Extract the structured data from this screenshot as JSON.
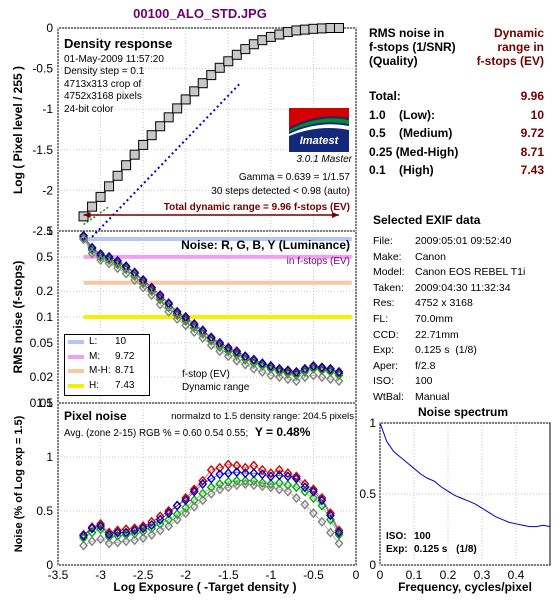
{
  "file_title": "00100_ALO_STD.JPG",
  "colors": {
    "maroon": "#700000",
    "blue_curve": "#0000d0",
    "red_trace": "#d00000",
    "green_trace": "#00b000",
    "blue_trace": "#0000c0",
    "gray_trace": "#808080",
    "band_low": "#b8c4f4",
    "band_medium": "#f0a0f0",
    "band_medhigh": "#f8c8a0",
    "band_high": "#f4f000"
  },
  "density_panel": {
    "title": "Density response",
    "info_lines": [
      "01-May-2009 11:57:20",
      "Density step = 0.1",
      "4713x313 crop of",
      "4752x3168 pixels",
      "24-bit color"
    ],
    "logo_text": "Imatest",
    "version": "3.0.1  Master",
    "gamma_text": "Gamma = 0.639 = 1/1.57",
    "steps_text": "30 steps detected < 0.98 (auto)",
    "dynamic_range_text": "Total dynamic range = 9.96 f-stops (EV)"
  },
  "noise_panel": {
    "title": "Noise: R, G, B, Y (Luminance)",
    "subtitle": "in f-stops (EV)",
    "legend": [
      {
        "key": "L:",
        "value": "10"
      },
      {
        "key": "M:",
        "value": "9.72"
      },
      {
        "key": "M-H:",
        "value": "8.71"
      },
      {
        "key": "H:",
        "value": "7.43"
      }
    ],
    "note_line1": "f-stop (EV)",
    "note_line2": "Dynamic range"
  },
  "pixel_panel": {
    "title": "Pixel noise",
    "norm_text": "normalzd to 1.5 density range: 204.5 pixels",
    "avg_text": "Avg. (zone 2-15) RGB % = 0.60  0.54  0.55;",
    "y_text": "Y = 0.48%"
  },
  "axes": {
    "density_ylabel": "Log ( Pixel level / 255 )",
    "noise_ylabel": "RMS noise (f-stops)",
    "pixel_ylabel": "Noise (% of Log exp = 1.5)",
    "bottom_xlabel": "Log Exposure  ( -Target density )",
    "density_yticks": [
      "0",
      "-0.5",
      "-1",
      "-1.5",
      "-2",
      "-2.5"
    ],
    "noise_yticks": [
      "1",
      "0.5",
      "0.2",
      "0.1",
      "0.05",
      "0.02",
      "0.01"
    ],
    "pixel_yticks": [
      "1.5",
      "1",
      "0.5",
      "0"
    ],
    "xticks": [
      "-3.5",
      "-3",
      "-2.5",
      "-2",
      "-1.5",
      "-1",
      "-0.5",
      "0"
    ]
  },
  "dynamic_range_table": {
    "header_left": [
      "RMS noise in",
      "f-stops (1/SNR)",
      "(Quality)"
    ],
    "header_right": [
      "Dynamic",
      "range in",
      "f-stops (EV)"
    ],
    "rows": [
      {
        "label": "Total:",
        "value": "9.96"
      },
      {
        "label": "1.0    (Low):",
        "value": "10"
      },
      {
        "label": "0.5    (Medium)",
        "value": "9.72"
      },
      {
        "label": "0.25 (Med-High)",
        "value": "8.71"
      },
      {
        "label": "0.1    (High)",
        "value": "7.43"
      }
    ]
  },
  "exif": {
    "title": "Selected EXIF data",
    "rows": [
      {
        "key": "File:",
        "value": "2009:05:01 09:52:40"
      },
      {
        "key": "Make:",
        "value": "Canon"
      },
      {
        "key": "Model:",
        "value": "Canon EOS REBEL T1i"
      },
      {
        "key": "Taken:",
        "value": "2009:04:30 11:32:34"
      },
      {
        "key": "Res:",
        "value": "4752 x 3168"
      },
      {
        "key": "FL:",
        "value": "70.0mm"
      },
      {
        "key": "CCD:",
        "value": "22.71mm"
      },
      {
        "key": "Exp:",
        "value": "0.125 s  (1/8)"
      },
      {
        "key": "Aper:",
        "value": "f/2.8"
      },
      {
        "key": "ISO:",
        "value": "100"
      },
      {
        "key": "WtBal:",
        "value": "Manual"
      }
    ]
  },
  "spectrum": {
    "title": "Noise spectrum",
    "xlabel": "Frequency, cycles/pixel",
    "xticks": [
      "0",
      "0.1",
      "0.2",
      "0.3",
      "0.4"
    ],
    "yticks": [
      "1",
      "0.5",
      "0"
    ],
    "iso_label": "ISO:",
    "iso_value": "100",
    "exp_label": "Exp:",
    "exp_value": "0.125 s",
    "exp_frac": "(1/8)"
  },
  "chart_data": [
    {
      "type": "scatter",
      "title": "Density response",
      "xlabel": "Log Exposure  ( -Target density )",
      "ylabel": "Log ( Pixel level / 255 )",
      "xlim": [
        -3.5,
        0
      ],
      "ylim": [
        -2.5,
        0
      ],
      "series": [
        {
          "x": [
            -3.2,
            -3.1,
            -3.0,
            -2.9,
            -2.8,
            -2.7,
            -2.6,
            -2.5,
            -2.4,
            -2.3,
            -2.2,
            -2.1,
            -2.0,
            -1.9,
            -1.8,
            -1.7,
            -1.6,
            -1.5,
            -1.4,
            -1.3,
            -1.2,
            -1.1,
            -1.0,
            -0.9,
            -0.8,
            -0.7,
            -0.6,
            -0.5,
            -0.4,
            -0.3,
            -0.2
          ],
          "y": [
            -2.32,
            -2.2,
            -2.08,
            -1.95,
            -1.82,
            -1.69,
            -1.56,
            -1.44,
            -1.32,
            -1.21,
            -1.1,
            -0.99,
            -0.88,
            -0.78,
            -0.68,
            -0.58,
            -0.49,
            -0.41,
            -0.33,
            -0.26,
            -0.2,
            -0.15,
            -0.11,
            -0.08,
            -0.05,
            -0.03,
            -0.02,
            -0.01,
            -0.005,
            0.0,
            0.0
          ]
        }
      ]
    },
    {
      "type": "line",
      "title": "Noise: R, G, B, Y (Luminance)",
      "ylabel": "RMS noise (f-stops)",
      "xlim": [
        -3.5,
        0
      ],
      "ylim": [
        0.01,
        1
      ],
      "log_y": true,
      "x": [
        -3.2,
        -3.1,
        -3.0,
        -2.9,
        -2.8,
        -2.7,
        -2.6,
        -2.5,
        -2.4,
        -2.3,
        -2.2,
        -2.1,
        -2.0,
        -1.9,
        -1.8,
        -1.7,
        -1.6,
        -1.5,
        -1.4,
        -1.3,
        -1.2,
        -1.1,
        -1.0,
        -0.9,
        -0.8,
        -0.7,
        -0.6,
        -0.5,
        -0.4,
        -0.3,
        -0.2
      ],
      "series": [
        {
          "name": "R",
          "values": [
            0.85,
            0.62,
            0.52,
            0.48,
            0.43,
            0.38,
            0.32,
            0.26,
            0.21,
            0.17,
            0.14,
            0.11,
            0.095,
            0.08,
            0.068,
            0.056,
            0.048,
            0.042,
            0.038,
            0.034,
            0.031,
            0.028,
            0.026,
            0.024,
            0.023,
            0.022,
            0.024,
            0.026,
            0.025,
            0.024,
            0.022
          ]
        },
        {
          "name": "G",
          "values": [
            0.82,
            0.6,
            0.5,
            0.46,
            0.41,
            0.36,
            0.3,
            0.245,
            0.2,
            0.16,
            0.13,
            0.105,
            0.09,
            0.075,
            0.064,
            0.053,
            0.045,
            0.04,
            0.036,
            0.032,
            0.029,
            0.027,
            0.025,
            0.023,
            0.022,
            0.021,
            0.023,
            0.025,
            0.024,
            0.023,
            0.021
          ]
        },
        {
          "name": "B",
          "values": [
            0.88,
            0.64,
            0.54,
            0.5,
            0.45,
            0.39,
            0.33,
            0.27,
            0.22,
            0.18,
            0.145,
            0.115,
            0.1,
            0.083,
            0.07,
            0.058,
            0.05,
            0.044,
            0.04,
            0.035,
            0.032,
            0.029,
            0.027,
            0.025,
            0.024,
            0.023,
            0.025,
            0.027,
            0.026,
            0.025,
            0.023
          ]
        },
        {
          "name": "Y",
          "values": [
            0.8,
            0.55,
            0.46,
            0.42,
            0.37,
            0.32,
            0.27,
            0.22,
            0.18,
            0.14,
            0.115,
            0.095,
            0.08,
            0.067,
            0.057,
            0.047,
            0.04,
            0.035,
            0.031,
            0.028,
            0.025,
            0.023,
            0.021,
            0.02,
            0.019,
            0.018,
            0.02,
            0.021,
            0.02,
            0.019,
            0.018
          ]
        }
      ],
      "reference_levels": [
        {
          "name": "L",
          "value": 1.0
        },
        {
          "name": "M",
          "value": 0.5
        },
        {
          "name": "M-H",
          "value": 0.25
        },
        {
          "name": "H",
          "value": 0.1
        }
      ]
    },
    {
      "type": "line",
      "title": "Pixel noise",
      "xlabel": "Log Exposure  ( -Target density )",
      "ylabel": "Noise (% of Log exp = 1.5)",
      "xlim": [
        -3.5,
        0
      ],
      "ylim": [
        0,
        1.5
      ],
      "x": [
        -3.2,
        -3.1,
        -3.0,
        -2.9,
        -2.8,
        -2.7,
        -2.6,
        -2.5,
        -2.4,
        -2.3,
        -2.2,
        -2.1,
        -2.0,
        -1.9,
        -1.8,
        -1.7,
        -1.6,
        -1.5,
        -1.4,
        -1.3,
        -1.2,
        -1.1,
        -1.0,
        -0.9,
        -0.8,
        -0.7,
        -0.6,
        -0.5,
        -0.4,
        -0.3,
        -0.2
      ],
      "series": [
        {
          "name": "R",
          "values": [
            0.28,
            0.35,
            0.38,
            0.3,
            0.32,
            0.33,
            0.34,
            0.36,
            0.4,
            0.45,
            0.5,
            0.55,
            0.62,
            0.7,
            0.78,
            0.88,
            0.9,
            0.93,
            0.92,
            0.9,
            0.92,
            0.88,
            0.85,
            0.88,
            0.85,
            0.82,
            0.75,
            0.7,
            0.62,
            0.48,
            0.32
          ]
        },
        {
          "name": "G",
          "values": [
            0.25,
            0.3,
            0.33,
            0.26,
            0.27,
            0.28,
            0.29,
            0.31,
            0.34,
            0.38,
            0.42,
            0.47,
            0.53,
            0.6,
            0.66,
            0.72,
            0.75,
            0.77,
            0.78,
            0.78,
            0.78,
            0.76,
            0.75,
            0.76,
            0.74,
            0.72,
            0.68,
            0.62,
            0.55,
            0.42,
            0.28
          ]
        },
        {
          "name": "B",
          "values": [
            0.27,
            0.34,
            0.36,
            0.28,
            0.3,
            0.3,
            0.32,
            0.34,
            0.37,
            0.42,
            0.48,
            0.55,
            0.6,
            0.68,
            0.75,
            0.8,
            0.84,
            0.85,
            0.86,
            0.85,
            0.85,
            0.84,
            0.82,
            0.83,
            0.82,
            0.8,
            0.72,
            0.68,
            0.6,
            0.46,
            0.3
          ]
        },
        {
          "name": "Y",
          "values": [
            0.18,
            0.22,
            0.24,
            0.2,
            0.21,
            0.22,
            0.23,
            0.25,
            0.28,
            0.32,
            0.36,
            0.42,
            0.48,
            0.54,
            0.6,
            0.66,
            0.7,
            0.72,
            0.74,
            0.75,
            0.74,
            0.73,
            0.72,
            0.7,
            0.68,
            0.62,
            0.56,
            0.48,
            0.4,
            0.3,
            0.2
          ]
        }
      ]
    },
    {
      "type": "line",
      "title": "Noise spectrum",
      "xlabel": "Frequency, cycles/pixel",
      "xlim": [
        0,
        0.5
      ],
      "ylim": [
        0,
        1
      ],
      "x": [
        0,
        0.02,
        0.04,
        0.06,
        0.08,
        0.1,
        0.12,
        0.14,
        0.16,
        0.18,
        0.2,
        0.22,
        0.24,
        0.26,
        0.28,
        0.3,
        0.32,
        0.34,
        0.36,
        0.38,
        0.4,
        0.42,
        0.44,
        0.46,
        0.48,
        0.5
      ],
      "y": [
        1.0,
        0.87,
        0.8,
        0.76,
        0.72,
        0.68,
        0.64,
        0.61,
        0.59,
        0.55,
        0.52,
        0.49,
        0.47,
        0.45,
        0.43,
        0.4,
        0.37,
        0.34,
        0.32,
        0.3,
        0.29,
        0.28,
        0.27,
        0.27,
        0.28,
        0.27
      ]
    }
  ]
}
